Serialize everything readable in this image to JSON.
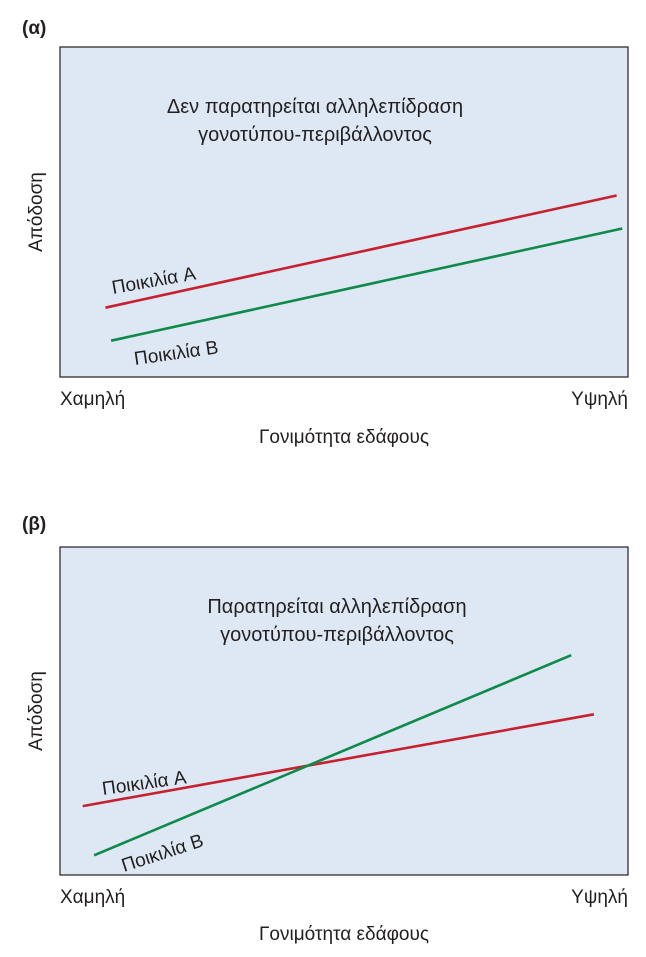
{
  "colors": {
    "background": "#dde8f4",
    "border": "#231f20",
    "text": "#231f20",
    "series_a": "#c8202e",
    "series_b": "#0f8a4b"
  },
  "chart_data": [
    {
      "type": "line",
      "panel_label": "(α)",
      "annotation": [
        "Δεν παρατηρείται αλληλεπίδραση",
        "γονοτύπου-περιβάλλοντος"
      ],
      "xlabel": "Γονιμότητα εδάφους",
      "ylabel": "Απόδοση",
      "x_ticks": [
        "Χαμηλή",
        "Υψηλή"
      ],
      "xlim": [
        0,
        1
      ],
      "ylim": [
        0,
        1
      ],
      "series": [
        {
          "name": "Ποικιλία A",
          "color": "#c8202e",
          "x": [
            0.08,
            0.98
          ],
          "y": [
            0.21,
            0.55
          ]
        },
        {
          "name": "Ποικιλία B",
          "color": "#0f8a4b",
          "x": [
            0.09,
            0.99
          ],
          "y": [
            0.11,
            0.45
          ]
        }
      ]
    },
    {
      "type": "line",
      "panel_label": "(β)",
      "annotation": [
        "Παρατηρείται αλληλεπίδραση",
        "γονοτύπου-περιβάλλοντος"
      ],
      "xlabel": "Γονιμότητα εδάφους",
      "ylabel": "Απόδοση",
      "x_ticks": [
        "Χαμηλή",
        "Υψηλή"
      ],
      "xlim": [
        0,
        1
      ],
      "ylim": [
        0,
        1
      ],
      "series": [
        {
          "name": "Ποικιλία A",
          "color": "#c8202e",
          "x": [
            0.04,
            0.94
          ],
          "y": [
            0.21,
            0.49
          ]
        },
        {
          "name": "Ποικιλία B",
          "color": "#0f8a4b",
          "x": [
            0.06,
            0.9
          ],
          "y": [
            0.06,
            0.67
          ]
        }
      ]
    }
  ]
}
